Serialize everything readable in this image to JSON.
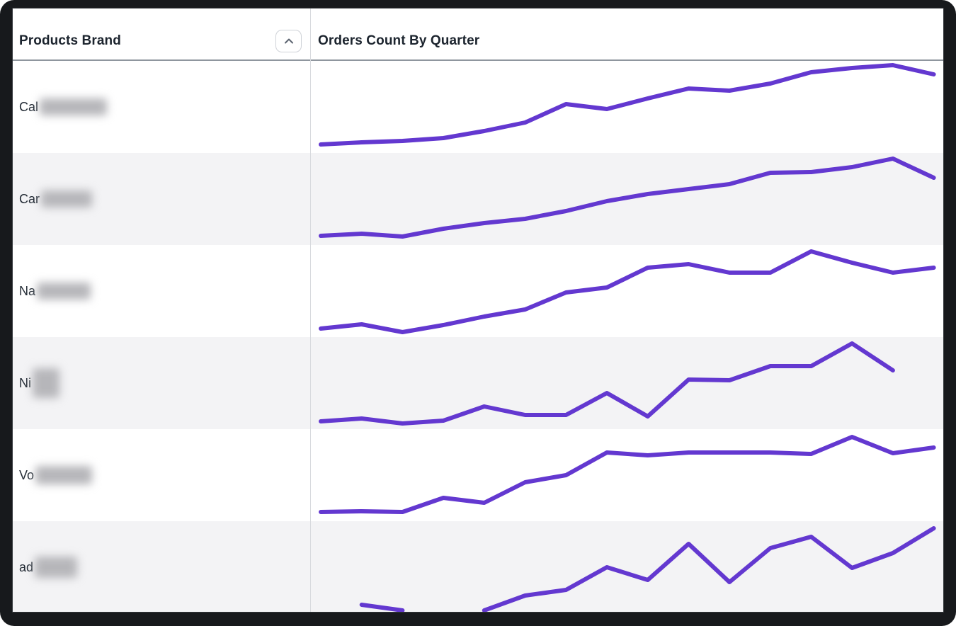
{
  "table": {
    "columns": [
      {
        "label": "Products Brand",
        "sortable": true,
        "sort_icon": "chevron-up"
      },
      {
        "label": "Orders Count By Quarter"
      }
    ],
    "rows": [
      {
        "brand_visible": "Cal",
        "redacted": true,
        "blur_w": 95,
        "blur_h": 24
      },
      {
        "brand_visible": "Car",
        "redacted": true,
        "blur_w": 72,
        "blur_h": 24
      },
      {
        "brand_visible": "Na",
        "redacted": true,
        "blur_w": 76,
        "blur_h": 24
      },
      {
        "brand_visible": "Ni",
        "redacted": true,
        "blur_w": 38,
        "blur_h": 42
      },
      {
        "brand_visible": "Vo",
        "redacted": true,
        "blur_w": 80,
        "blur_h": 26
      },
      {
        "brand_visible": "ad",
        "redacted": true,
        "blur_w": 60,
        "blur_h": 30
      }
    ]
  },
  "chart_data": {
    "type": "line",
    "variant": "sparkline-per-table-row",
    "title": "Orders Count By Quarter",
    "xlabel": "",
    "ylabel": "",
    "x": [
      1,
      2,
      3,
      4,
      5,
      6,
      7,
      8,
      9,
      10,
      11,
      12,
      13,
      14,
      15,
      16
    ],
    "note": "No axis ticks or value labels are shown in the UI; values are relative units estimated from line heights (null = missing point / gap in line).",
    "ylim": [
      0,
      130
    ],
    "grid": false,
    "legend": "none",
    "series": [
      {
        "name": "Cal (blurred)",
        "values": [
          12,
          15,
          17,
          21,
          31,
          43,
          69,
          62,
          77,
          91,
          88,
          98,
          114,
          120,
          124,
          111
        ]
      },
      {
        "name": "Car (blurred)",
        "values": [
          13,
          16,
          12,
          23,
          31,
          37,
          48,
          62,
          72,
          79,
          86,
          102,
          103,
          110,
          122,
          95
        ]
      },
      {
        "name": "Na (blurred)",
        "values": [
          12,
          18,
          7,
          17,
          29,
          39,
          63,
          70,
          98,
          103,
          91,
          91,
          121,
          105,
          91,
          98
        ]
      },
      {
        "name": "Ni (blurred)",
        "values": [
          11,
          15,
          8,
          12,
          32,
          20,
          20,
          51,
          18,
          70,
          69,
          89,
          89,
          121,
          83,
          null
        ]
      },
      {
        "name": "Vo (blurred)",
        "values": [
          13,
          14,
          13,
          33,
          26,
          55,
          65,
          97,
          93,
          97,
          97,
          97,
          95,
          119,
          96,
          104
        ]
      },
      {
        "name": "ad (blurred)",
        "values": [
          null,
          12,
          4,
          null,
          4,
          25,
          33,
          65,
          47,
          98,
          44,
          92,
          108,
          64,
          85,
          120
        ]
      }
    ]
  },
  "colors": {
    "line": "#6338D0",
    "alt_row_bg": "#F3F3F5",
    "header_text": "#1C242E",
    "label_text": "#232B35",
    "header_underline": "#8F969E",
    "column_divider": "#D7D9DD",
    "frame_bg": "#17191C",
    "sort_button_border": "#CFD2D8",
    "sort_icon": "#5C6470",
    "blur_blob": "#B6B6BA"
  }
}
